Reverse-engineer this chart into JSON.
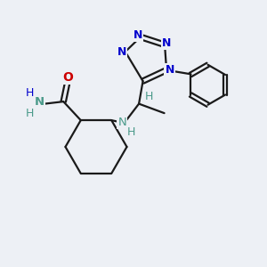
{
  "background_color": "#edf0f5",
  "bond_color": "#1a1a1a",
  "bond_width": 1.6,
  "N_color": "#0000cc",
  "O_color": "#cc0000",
  "teal_color": "#4a9a8a",
  "figsize": [
    3.0,
    3.0
  ],
  "dpi": 100,
  "xlim": [
    0,
    10
  ],
  "ylim": [
    0,
    10
  ]
}
